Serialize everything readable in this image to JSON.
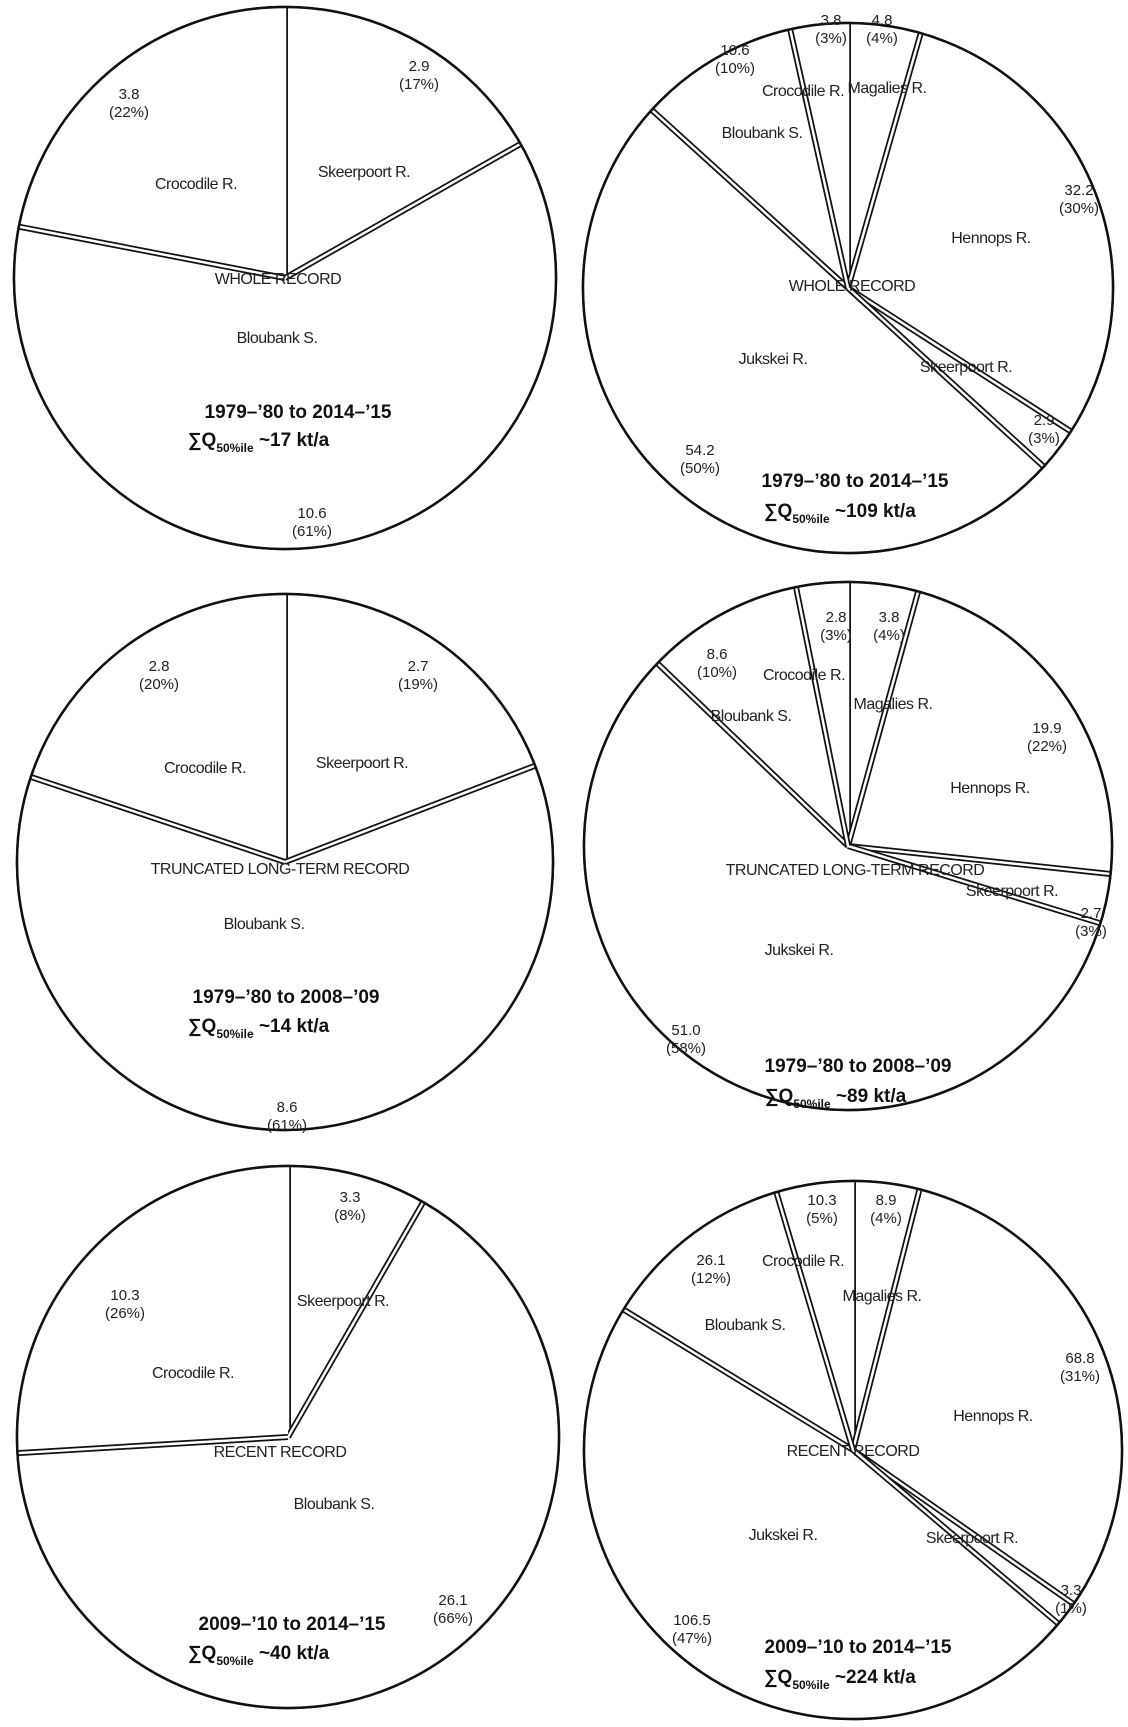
{
  "chart_data": [
    {
      "type": "pie",
      "record_label": "WHOLE RECORD",
      "period": "1979–’80 to  2014–’15",
      "sum_prefix": "∑Q",
      "sum_sub": "50%ile",
      "sum_value": " ~17 kt/a",
      "slices": [
        {
          "name": "Skeerpoort R.",
          "value": 2.9,
          "value_text": "2.9",
          "pct_text": "(17%)"
        },
        {
          "name": "Bloubank S.",
          "value": 10.6,
          "value_text": "10.6",
          "pct_text": "(61%)"
        },
        {
          "name": "Crocodile R.",
          "value": 3.8,
          "value_text": "3.8",
          "pct_text": "(22%)"
        }
      ]
    },
    {
      "type": "pie",
      "record_label": "WHOLE RECORD",
      "period": "1979–’80 to 2014–’15",
      "sum_prefix": "∑Q",
      "sum_sub": "50%ile",
      "sum_value": " ~109 kt/a",
      "slices": [
        {
          "name": "Magalies R.",
          "value": 4.8,
          "value_text": "4.8",
          "pct_text": "(4%)"
        },
        {
          "name": "Hennops R.",
          "value": 32.2,
          "value_text": "32.2",
          "pct_text": "(30%)"
        },
        {
          "name": "Skeerpoort R.",
          "value": 2.9,
          "value_text": "2.9",
          "pct_text": "(3%)"
        },
        {
          "name": "Jukskei R.",
          "value": 54.2,
          "value_text": "54.2",
          "pct_text": "(50%)"
        },
        {
          "name": "Bloubank S.",
          "value": 10.6,
          "value_text": "10.6",
          "pct_text": "(10%)"
        },
        {
          "name": "Crocodile R.",
          "value": 3.8,
          "value_text": "3.8",
          "pct_text": "(3%)"
        }
      ]
    },
    {
      "type": "pie",
      "record_label": "TRUNCATED LONG-TERM RECORD",
      "period": "1979–’80 to  2008–’09",
      "sum_prefix": "∑Q",
      "sum_sub": "50%ile",
      "sum_value": " ~14 kt/a",
      "slices": [
        {
          "name": "Skeerpoort R.",
          "value": 2.7,
          "value_text": "2.7",
          "pct_text": "(19%)"
        },
        {
          "name": "Bloubank S.",
          "value": 8.6,
          "value_text": "8.6",
          "pct_text": "(61%)"
        },
        {
          "name": "Crocodile R.",
          "value": 2.8,
          "value_text": "2.8",
          "pct_text": "(20%)"
        }
      ]
    },
    {
      "type": "pie",
      "record_label": "TRUNCATED LONG-TERM RECORD",
      "period": "1979–’80 to 2008–’09",
      "sum_prefix": "∑Q",
      "sum_sub": "50%ile",
      "sum_value": " ~89 kt/a",
      "slices": [
        {
          "name": "Magalies R.",
          "value": 3.8,
          "value_text": "3.8",
          "pct_text": "(4%)"
        },
        {
          "name": "Hennops R.",
          "value": 19.9,
          "value_text": "19.9",
          "pct_text": "(22%)"
        },
        {
          "name": "Skeerpoort R.",
          "value": 2.7,
          "value_text": "2.7",
          "pct_text": "(3%)"
        },
        {
          "name": "Jukskei R.",
          "value": 51.0,
          "value_text": "51.0",
          "pct_text": "(58%)"
        },
        {
          "name": "Bloubank S.",
          "value": 8.6,
          "value_text": "8.6",
          "pct_text": "(10%)"
        },
        {
          "name": "Crocodile R.",
          "value": 2.8,
          "value_text": "2.8",
          "pct_text": "(3%)"
        }
      ]
    },
    {
      "type": "pie",
      "record_label": "RECENT RECORD",
      "period": "2009–’10 to  2014–’15",
      "sum_prefix": "∑Q",
      "sum_sub": "50%ile",
      "sum_value": " ~40 kt/a",
      "slices": [
        {
          "name": "Skeerpoort R.",
          "value": 3.3,
          "value_text": "3.3",
          "pct_text": "(8%)"
        },
        {
          "name": "Bloubank S.",
          "value": 26.1,
          "value_text": "26.1",
          "pct_text": "(66%)"
        },
        {
          "name": "Crocodile R.",
          "value": 10.3,
          "value_text": "10.3",
          "pct_text": "(26%)"
        }
      ]
    },
    {
      "type": "pie",
      "record_label": "RECENT RECORD",
      "period": "2009–’10 to 2014–’15",
      "sum_prefix": "∑Q",
      "sum_sub": "50%ile",
      "sum_value": " ~224 kt/a",
      "slices": [
        {
          "name": "Magalies R.",
          "value": 8.9,
          "value_text": "8.9",
          "pct_text": "(4%)"
        },
        {
          "name": "Hennops R.",
          "value": 68.8,
          "value_text": "68.8",
          "pct_text": "(31%)"
        },
        {
          "name": "Skeerpoort R.",
          "value": 3.3,
          "value_text": "3.3",
          "pct_text": "(1%)"
        },
        {
          "name": "Jukskei R.",
          "value": 106.5,
          "value_text": "106.5",
          "pct_text": "(47%)"
        },
        {
          "name": "Bloubank S.",
          "value": 26.1,
          "value_text": "26.1",
          "pct_text": "(12%)"
        },
        {
          "name": "Crocodile R.",
          "value": 10.3,
          "value_text": "10.3",
          "pct_text": "(5%)"
        }
      ]
    }
  ]
}
